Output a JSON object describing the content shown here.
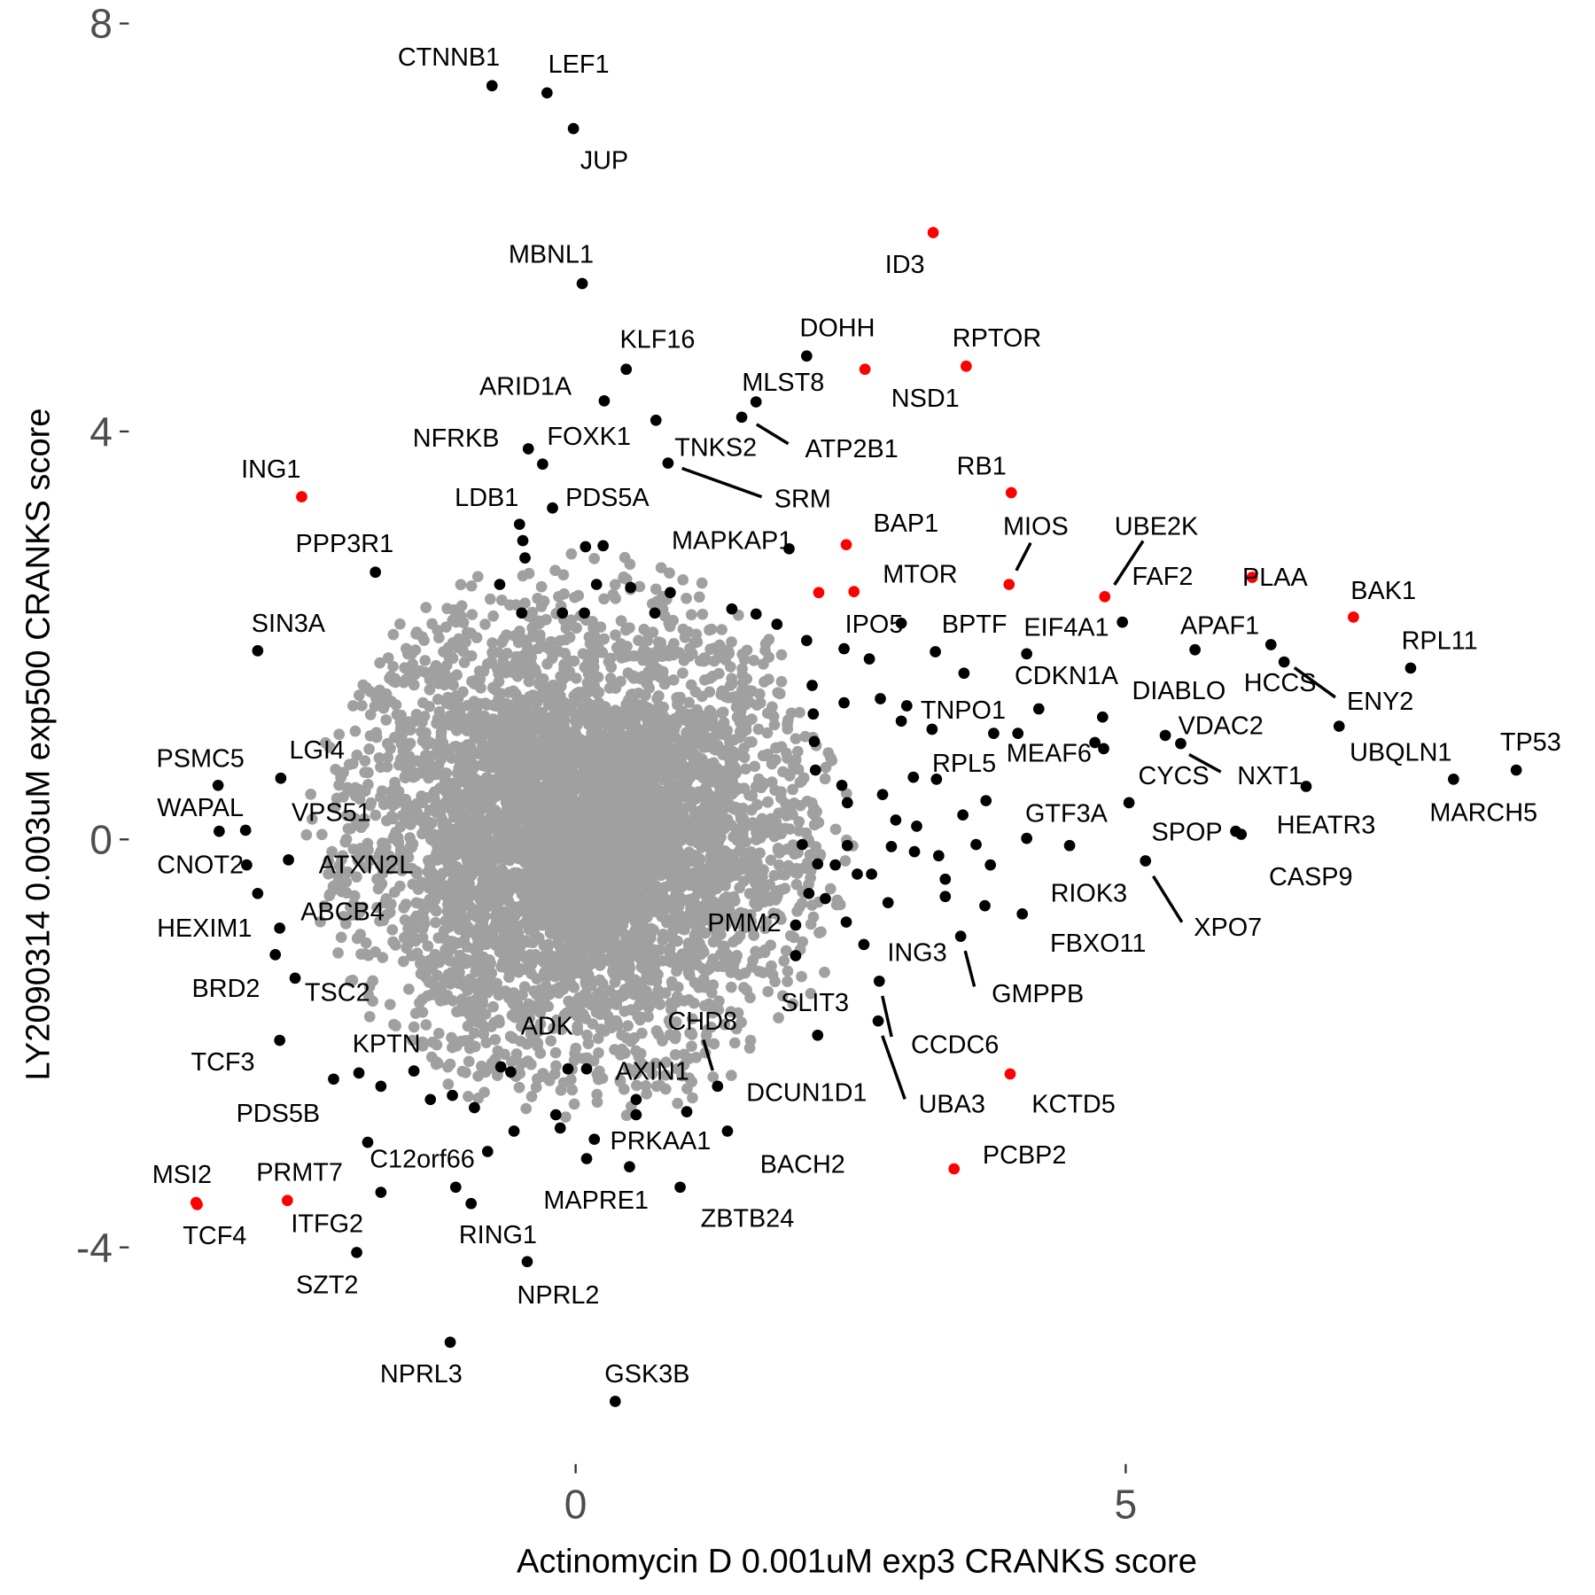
{
  "chart_data": {
    "type": "scatter",
    "xlabel": "Actinomycin D 0.001uM exp3 CRANKS score",
    "ylabel": "LY2090314 0.003uM exp500 CRANKS score",
    "x_ticks": [
      "0",
      "5"
    ],
    "y_ticks": [
      "8",
      "4",
      "0",
      "-4"
    ],
    "xlim": [
      -5.2,
      9.1
    ],
    "ylim": [
      -6.3,
      8.0
    ],
    "grid": false,
    "legend": "none",
    "colors": {
      "highlight": "#ff0000",
      "significant": "#000000",
      "background": "#a0a0a0"
    },
    "labeled_points": [
      {
        "label": "CTNNB1",
        "x": -0.76,
        "y": 7.39,
        "group": "significant"
      },
      {
        "label": "LEF1",
        "x": -0.26,
        "y": 7.32,
        "group": "significant"
      },
      {
        "label": "JUP",
        "x": -0.02,
        "y": 6.97,
        "group": "significant"
      },
      {
        "label": "MBNL1",
        "x": 0.06,
        "y": 5.45,
        "group": "significant"
      },
      {
        "label": "ID3",
        "x": 3.25,
        "y": 5.95,
        "group": "highlight"
      },
      {
        "label": "KLF16",
        "x": 0.46,
        "y": 4.61,
        "group": "significant"
      },
      {
        "label": "DOHH",
        "x": 2.1,
        "y": 4.74,
        "group": "significant"
      },
      {
        "label": "RPTOR",
        "x": 3.55,
        "y": 4.64,
        "group": "highlight"
      },
      {
        "label": "NSD1",
        "x": 2.63,
        "y": 4.61,
        "group": "highlight"
      },
      {
        "label": "ARID1A",
        "x": 0.26,
        "y": 4.3,
        "group": "significant"
      },
      {
        "label": "MLST8",
        "x": 1.64,
        "y": 4.29,
        "group": "significant"
      },
      {
        "label": "ATP2B1",
        "x": 1.51,
        "y": 4.14,
        "group": "significant"
      },
      {
        "label": "TNKS2",
        "x": 0.73,
        "y": 4.11,
        "group": "significant"
      },
      {
        "label": "NFRKB",
        "x": -0.43,
        "y": 3.83,
        "group": "significant"
      },
      {
        "label": "FOXK1",
        "x": -0.3,
        "y": 3.68,
        "group": "significant"
      },
      {
        "label": "SRM",
        "x": 0.84,
        "y": 3.69,
        "group": "significant"
      },
      {
        "label": "ING1",
        "x": -2.49,
        "y": 3.36,
        "group": "highlight"
      },
      {
        "label": "RB1",
        "x": 3.96,
        "y": 3.4,
        "group": "highlight"
      },
      {
        "label": "PDS5A",
        "x": -0.21,
        "y": 3.25,
        "group": "significant"
      },
      {
        "label": "LDB1",
        "x": -0.51,
        "y": 3.09,
        "group": "significant"
      },
      {
        "label": "MAPKAP1",
        "x": 1.94,
        "y": 2.85,
        "group": "significant"
      },
      {
        "label": "PPP3R1",
        "x": -1.82,
        "y": 2.62,
        "group": "significant"
      },
      {
        "label": "BAP1",
        "x": 2.46,
        "y": 2.89,
        "group": "highlight"
      },
      {
        "label": "MIOS",
        "x": 3.94,
        "y": 2.5,
        "group": "highlight"
      },
      {
        "label": "UBE2K",
        "x": 4.81,
        "y": 2.38,
        "group": "highlight"
      },
      {
        "label": "MTOR",
        "x": 2.53,
        "y": 2.43,
        "group": "highlight"
      },
      {
        "label": "PLAA",
        "x": 6.15,
        "y": 2.57,
        "group": "highlight"
      },
      {
        "label": "BAK1",
        "x": 7.07,
        "y": 2.18,
        "group": "highlight"
      },
      {
        "label": "FAF2",
        "x": 4.97,
        "y": 2.13,
        "group": "significant"
      },
      {
        "label": "SIN3A",
        "x": -2.89,
        "y": 1.85,
        "group": "significant"
      },
      {
        "label": "IPO5",
        "x": 2.96,
        "y": 2.12,
        "group": "significant"
      },
      {
        "label": "BPTF",
        "x": 3.27,
        "y": 1.84,
        "group": "significant"
      },
      {
        "label": "EIF4A1",
        "x": 4.1,
        "y": 1.82,
        "group": "significant"
      },
      {
        "label": "APAF1",
        "x": 5.63,
        "y": 1.86,
        "group": "significant"
      },
      {
        "label": "HCCS",
        "x": 6.32,
        "y": 1.91,
        "group": "significant"
      },
      {
        "label": "ENY2",
        "x": 6.44,
        "y": 1.74,
        "group": "significant"
      },
      {
        "label": "RPL11",
        "x": 7.59,
        "y": 1.68,
        "group": "significant"
      },
      {
        "label": "CDKN1A",
        "x": 4.21,
        "y": 1.28,
        "group": "significant"
      },
      {
        "label": "DIABLO",
        "x": 4.79,
        "y": 1.2,
        "group": "significant"
      },
      {
        "label": "TNPO1",
        "x": 3.24,
        "y": 1.08,
        "group": "significant"
      },
      {
        "label": "UBQLN1",
        "x": 6.94,
        "y": 1.11,
        "group": "significant"
      },
      {
        "label": "VDAC2",
        "x": 5.36,
        "y": 1.02,
        "group": "significant"
      },
      {
        "label": "NXT1",
        "x": 5.5,
        "y": 0.94,
        "group": "significant"
      },
      {
        "label": "MEAF6",
        "x": 4.72,
        "y": 0.95,
        "group": "significant"
      },
      {
        "label": "TP53",
        "x": 8.55,
        "y": 0.68,
        "group": "significant"
      },
      {
        "label": "RPL5",
        "x": 3.28,
        "y": 0.59,
        "group": "significant"
      },
      {
        "label": "MARCH5",
        "x": 7.98,
        "y": 0.59,
        "group": "significant"
      },
      {
        "label": "HEATR3",
        "x": 6.64,
        "y": 0.52,
        "group": "significant"
      },
      {
        "label": "CYCS",
        "x": 5.03,
        "y": 0.36,
        "group": "significant"
      },
      {
        "label": "GTF3A",
        "x": 4.1,
        "y": 0.01,
        "group": "significant"
      },
      {
        "label": "SPOP",
        "x": 6.0,
        "y": 0.08,
        "group": "significant"
      },
      {
        "label": "CASP9",
        "x": 6.05,
        "y": 0.05,
        "group": "significant"
      },
      {
        "label": "XPO7",
        "x": 5.18,
        "y": -0.21,
        "group": "significant"
      },
      {
        "label": "RIOK3",
        "x": 4.49,
        "y": -0.06,
        "group": "significant"
      },
      {
        "label": "FBXO11",
        "x": 4.06,
        "y": -0.73,
        "group": "significant"
      },
      {
        "label": "PSMC5",
        "x": -3.25,
        "y": 0.53,
        "group": "significant"
      },
      {
        "label": "LGI4",
        "x": -2.68,
        "y": 0.6,
        "group": "significant"
      },
      {
        "label": "WAPAL",
        "x": -3.24,
        "y": 0.08,
        "group": "significant"
      },
      {
        "label": "VPS51",
        "x": -3.0,
        "y": 0.09,
        "group": "significant"
      },
      {
        "label": "CNOT2",
        "x": -2.99,
        "y": -0.25,
        "group": "significant"
      },
      {
        "label": "ATXN2L",
        "x": -2.61,
        "y": -0.2,
        "group": "significant"
      },
      {
        "label": "HEXIM1",
        "x": -2.89,
        "y": -0.53,
        "group": "significant"
      },
      {
        "label": "ABCB4",
        "x": -2.69,
        "y": -0.87,
        "group": "significant"
      },
      {
        "label": "BRD2",
        "x": -2.73,
        "y": -1.13,
        "group": "significant"
      },
      {
        "label": "TSC2",
        "x": -2.55,
        "y": -1.36,
        "group": "significant"
      },
      {
        "label": "TCF3",
        "x": -2.69,
        "y": -1.97,
        "group": "significant"
      },
      {
        "label": "KPTN",
        "x": -1.97,
        "y": -2.29,
        "group": "significant"
      },
      {
        "label": "PDS5B",
        "x": -2.2,
        "y": -2.35,
        "group": "significant"
      },
      {
        "label": "ADK",
        "x": -0.07,
        "y": -2.25,
        "group": "significant"
      },
      {
        "label": "PMM2",
        "x": 2.0,
        "y": -0.84,
        "group": "significant"
      },
      {
        "label": "ING3",
        "x": 2.62,
        "y": -1.03,
        "group": "significant"
      },
      {
        "label": "GMPPB",
        "x": 3.5,
        "y": -0.95,
        "group": "significant"
      },
      {
        "label": "CCDC6",
        "x": 2.76,
        "y": -1.39,
        "group": "significant"
      },
      {
        "label": "UBA3",
        "x": 2.75,
        "y": -1.78,
        "group": "significant"
      },
      {
        "label": "SLIT3",
        "x": 2.2,
        "y": -1.92,
        "group": "significant"
      },
      {
        "label": "CHD8",
        "x": 1.29,
        "y": -2.42,
        "group": "significant"
      },
      {
        "label": "DCUN1D1",
        "x": 1.01,
        "y": -2.67,
        "group": "significant"
      },
      {
        "label": "AXIN1",
        "x": 0.55,
        "y": -2.55,
        "group": "significant"
      },
      {
        "label": "KCTD5",
        "x": 3.95,
        "y": -2.3,
        "group": "highlight"
      },
      {
        "label": "PCBP2",
        "x": 3.44,
        "y": -3.23,
        "group": "highlight"
      },
      {
        "label": "PRKAA1",
        "x": 0.17,
        "y": -2.94,
        "group": "significant"
      },
      {
        "label": "BACH2",
        "x": 1.38,
        "y": -2.86,
        "group": "significant"
      },
      {
        "label": "C12orf66",
        "x": -1.89,
        "y": -2.97,
        "group": "significant"
      },
      {
        "label": "MAPRE1",
        "x": 0.49,
        "y": -3.21,
        "group": "significant"
      },
      {
        "label": "ZBTB24",
        "x": 0.95,
        "y": -3.41,
        "group": "significant"
      },
      {
        "label": "MSI2",
        "x": -3.45,
        "y": -3.56,
        "group": "highlight"
      },
      {
        "label": "TCF4",
        "x": -3.44,
        "y": -3.58,
        "group": "highlight"
      },
      {
        "label": "PRMT7",
        "x": -2.62,
        "y": -3.54,
        "group": "highlight"
      },
      {
        "label": "ITFG2",
        "x": -1.77,
        "y": -3.46,
        "group": "significant"
      },
      {
        "label": "RING1",
        "x": -0.95,
        "y": -3.57,
        "group": "significant"
      },
      {
        "label": "SZT2",
        "x": -1.99,
        "y": -4.05,
        "group": "significant"
      },
      {
        "label": "NPRL2",
        "x": -0.44,
        "y": -4.14,
        "group": "significant"
      },
      {
        "label": "NPRL3",
        "x": -1.14,
        "y": -4.93,
        "group": "significant"
      },
      {
        "label": "GSK3B",
        "x": 0.36,
        "y": -5.51,
        "group": "significant"
      }
    ],
    "unlabeled_points": [
      {
        "x": 2.21,
        "y": 2.42,
        "group": "highlight"
      },
      {
        "x": -0.48,
        "y": 2.93,
        "group": "significant"
      },
      {
        "x": -0.46,
        "y": 2.76,
        "group": "significant"
      },
      {
        "x": -0.69,
        "y": 2.5,
        "group": "significant"
      },
      {
        "x": 0.09,
        "y": 2.87,
        "group": "significant"
      },
      {
        "x": 0.25,
        "y": 2.88,
        "group": "significant"
      },
      {
        "x": 0.19,
        "y": 2.5,
        "group": "significant"
      },
      {
        "x": 0.5,
        "y": 2.47,
        "group": "significant"
      },
      {
        "x": 0.86,
        "y": 2.42,
        "group": "significant"
      },
      {
        "x": 0.72,
        "y": 2.22,
        "group": "significant"
      },
      {
        "x": -0.49,
        "y": 2.22,
        "group": "significant"
      },
      {
        "x": -0.12,
        "y": 2.22,
        "group": "significant"
      },
      {
        "x": 0.08,
        "y": 2.22,
        "group": "significant"
      },
      {
        "x": 1.42,
        "y": 2.26,
        "group": "significant"
      },
      {
        "x": 1.64,
        "y": 2.21,
        "group": "significant"
      },
      {
        "x": 1.83,
        "y": 2.11,
        "group": "significant"
      },
      {
        "x": 2.1,
        "y": 1.95,
        "group": "significant"
      },
      {
        "x": 2.44,
        "y": 1.87,
        "group": "significant"
      },
      {
        "x": 2.67,
        "y": 1.77,
        "group": "significant"
      },
      {
        "x": 3.53,
        "y": 1.63,
        "group": "significant"
      },
      {
        "x": 2.15,
        "y": 1.51,
        "group": "significant"
      },
      {
        "x": 2.44,
        "y": 1.34,
        "group": "significant"
      },
      {
        "x": 2.77,
        "y": 1.38,
        "group": "significant"
      },
      {
        "x": 3.01,
        "y": 1.31,
        "group": "significant"
      },
      {
        "x": 2.96,
        "y": 1.16,
        "group": "significant"
      },
      {
        "x": 3.8,
        "y": 1.04,
        "group": "significant"
      },
      {
        "x": 4.02,
        "y": 1.04,
        "group": "significant"
      },
      {
        "x": 4.8,
        "y": 0.89,
        "group": "significant"
      },
      {
        "x": 2.16,
        "y": 1.23,
        "group": "significant"
      },
      {
        "x": 2.17,
        "y": 0.96,
        "group": "significant"
      },
      {
        "x": 2.18,
        "y": 0.68,
        "group": "significant"
      },
      {
        "x": 2.42,
        "y": 0.53,
        "group": "significant"
      },
      {
        "x": 2.47,
        "y": 0.36,
        "group": "significant"
      },
      {
        "x": 2.79,
        "y": 0.44,
        "group": "significant"
      },
      {
        "x": 3.07,
        "y": 0.61,
        "group": "significant"
      },
      {
        "x": 3.73,
        "y": 0.38,
        "group": "significant"
      },
      {
        "x": 3.52,
        "y": 0.24,
        "group": "significant"
      },
      {
        "x": 2.91,
        "y": 0.19,
        "group": "significant"
      },
      {
        "x": 3.1,
        "y": 0.13,
        "group": "significant"
      },
      {
        "x": 3.08,
        "y": -0.12,
        "group": "significant"
      },
      {
        "x": 2.87,
        "y": -0.07,
        "group": "significant"
      },
      {
        "x": 3.3,
        "y": -0.16,
        "group": "significant"
      },
      {
        "x": 3.36,
        "y": -0.39,
        "group": "significant"
      },
      {
        "x": 3.64,
        "y": -0.05,
        "group": "significant"
      },
      {
        "x": 3.77,
        "y": -0.25,
        "group": "significant"
      },
      {
        "x": 3.36,
        "y": -0.56,
        "group": "significant"
      },
      {
        "x": 3.72,
        "y": -0.65,
        "group": "significant"
      },
      {
        "x": 2.84,
        "y": -0.62,
        "group": "significant"
      },
      {
        "x": 2.06,
        "y": -0.05,
        "group": "significant"
      },
      {
        "x": 2.2,
        "y": -0.24,
        "group": "significant"
      },
      {
        "x": 2.47,
        "y": -0.06,
        "group": "significant"
      },
      {
        "x": 2.36,
        "y": -0.25,
        "group": "significant"
      },
      {
        "x": 2.56,
        "y": -0.34,
        "group": "significant"
      },
      {
        "x": 2.69,
        "y": -0.34,
        "group": "significant"
      },
      {
        "x": 2.12,
        "y": -0.53,
        "group": "significant"
      },
      {
        "x": 2.27,
        "y": -0.58,
        "group": "significant"
      },
      {
        "x": 2.46,
        "y": -0.81,
        "group": "significant"
      },
      {
        "x": 2.0,
        "y": -1.14,
        "group": "significant"
      },
      {
        "x": 0.1,
        "y": -2.25,
        "group": "significant"
      },
      {
        "x": -0.68,
        "y": -2.23,
        "group": "significant"
      },
      {
        "x": -0.59,
        "y": -2.28,
        "group": "significant"
      },
      {
        "x": -0.18,
        "y": -2.7,
        "group": "significant"
      },
      {
        "x": -0.14,
        "y": -2.83,
        "group": "significant"
      },
      {
        "x": -0.56,
        "y": -2.86,
        "group": "significant"
      },
      {
        "x": -0.8,
        "y": -3.06,
        "group": "significant"
      },
      {
        "x": -1.09,
        "y": -3.41,
        "group": "significant"
      },
      {
        "x": -0.92,
        "y": -2.63,
        "group": "significant"
      },
      {
        "x": -1.12,
        "y": -2.51,
        "group": "significant"
      },
      {
        "x": -1.32,
        "y": -2.55,
        "group": "significant"
      },
      {
        "x": -1.47,
        "y": -2.27,
        "group": "significant"
      },
      {
        "x": -1.77,
        "y": -2.42,
        "group": "significant"
      },
      {
        "x": 0.1,
        "y": -3.13,
        "group": "significant"
      },
      {
        "x": 0.55,
        "y": -2.7,
        "group": "significant"
      }
    ]
  }
}
